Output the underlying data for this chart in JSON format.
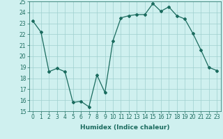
{
  "x": [
    0,
    1,
    2,
    3,
    4,
    5,
    6,
    7,
    8,
    9,
    10,
    11,
    12,
    13,
    14,
    15,
    16,
    17,
    18,
    19,
    20,
    21,
    22,
    23
  ],
  "y": [
    23.2,
    22.2,
    18.6,
    18.9,
    18.6,
    15.8,
    15.9,
    15.4,
    18.3,
    16.7,
    21.4,
    23.5,
    23.7,
    23.8,
    23.8,
    24.8,
    24.1,
    24.5,
    23.7,
    23.4,
    22.1,
    20.6,
    19.0,
    18.7
  ],
  "line_color": "#1a6b5e",
  "bg_color": "#cff0ef",
  "grid_color": "#9fcfcf",
  "xlabel": "Humidex (Indice chaleur)",
  "ylim": [
    15,
    25
  ],
  "xlim": [
    -0.5,
    23.5
  ],
  "yticks": [
    15,
    16,
    17,
    18,
    19,
    20,
    21,
    22,
    23,
    24,
    25
  ],
  "xticks": [
    0,
    1,
    2,
    3,
    4,
    5,
    6,
    7,
    8,
    9,
    10,
    11,
    12,
    13,
    14,
    15,
    16,
    17,
    18,
    19,
    20,
    21,
    22,
    23
  ],
  "xtick_labels": [
    "0",
    "1",
    "2",
    "3",
    "4",
    "5",
    "6",
    "7",
    "8",
    "9",
    "10",
    "11",
    "12",
    "13",
    "14",
    "15",
    "16",
    "17",
    "18",
    "19",
    "20",
    "21",
    "22",
    "23"
  ],
  "marker": "D",
  "markersize": 2.0,
  "linewidth": 0.9,
  "label_fontsize": 6.5,
  "tick_fontsize": 5.5
}
